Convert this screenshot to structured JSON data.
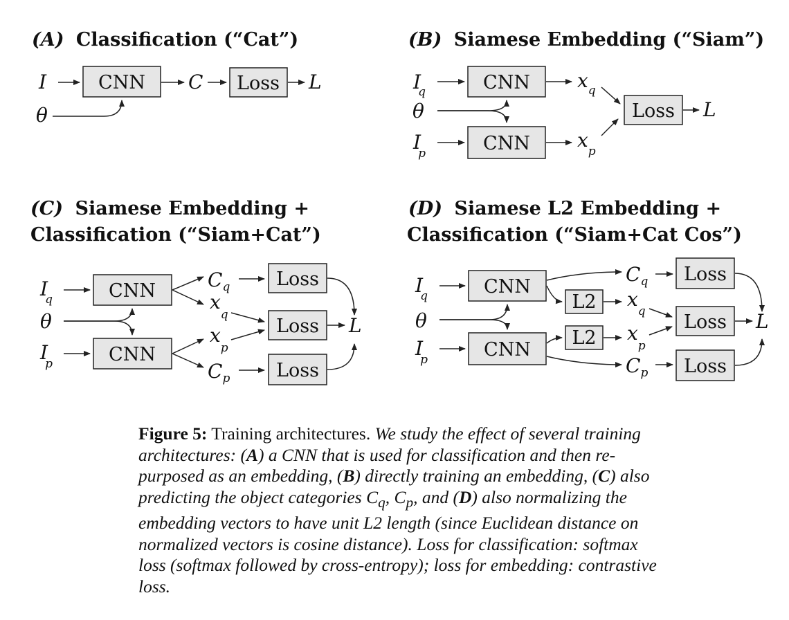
{
  "panels": {
    "A": {
      "tag": "(A)",
      "title": "Classification (“Cat”)",
      "title_line2": ""
    },
    "B": {
      "tag": "(B)",
      "title": "Siamese Embedding (“Siam”)",
      "title_line2": ""
    },
    "C": {
      "tag": "(C)",
      "title": "Siamese Embedding +",
      "title_line2": "Classification (“Siam+Cat”)"
    },
    "D": {
      "tag": "(D)",
      "title": "Siamese L2 Embedding +",
      "title_line2": "Classification (“Siam+Cat Cos”)"
    }
  },
  "labels": {
    "cnn": "CNN",
    "loss": "Loss",
    "l2": "L2",
    "I": "I",
    "theta": "θ",
    "C": "C",
    "L": "L",
    "x": "x",
    "q": "q",
    "p": "p"
  },
  "caption": {
    "label": "Figure 5:",
    "lead": " Training architectures. ",
    "body": "We study the effect of several training architectures: (A) a CNN that is used for classification and then re-purposed as an embedding, (B) directly training an embedding, (C) also predicting the object categories C_q, C_p, and (D) also normalizing the embedding vectors to have unit L2 length (since Euclidean distance on normalized vectors is cosine distance). Loss for classification: softmax loss (softmax followed by cross-entropy); loss for embedding: contrastive loss.",
    "part1": "We study the effect of several training architectures: (",
    "letterA": "A",
    "part2": ") a CNN that is used for classification and then re-purposed as an embedding, (",
    "letterB": "B",
    "part3": ") directly training an embedding, (",
    "letterC": "C",
    "part4": ") also predicting the object categories ",
    "cq": "C",
    "cq_sub": "q",
    "sep": ", ",
    "cp": "C",
    "cp_sub": "p",
    "part5": ", and (",
    "letterD": "D",
    "part6": ") also normalizing the embedding vectors to have unit L2 length (since Euclidean distance on normalized vectors is cosine distance). Loss for classification: softmax loss (softmax followed by cross-entropy); loss for embedding: contrastive loss."
  }
}
